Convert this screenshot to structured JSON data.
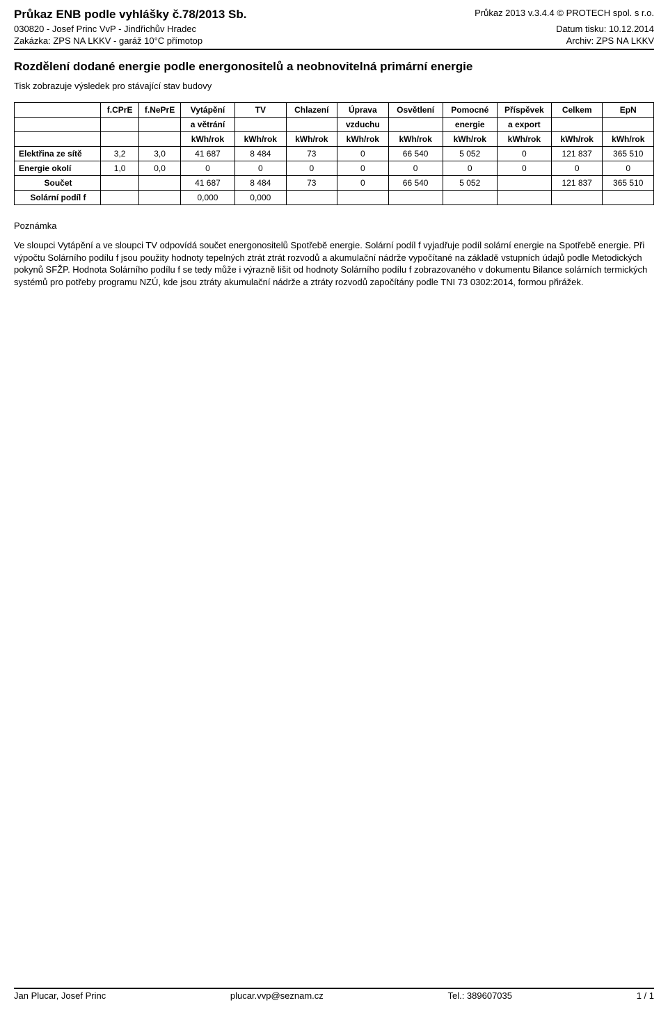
{
  "header": {
    "left1": "Průkaz ENB podle vyhlášky č.78/2013 Sb.",
    "right1": "Průkaz 2013 v.3.4.4 © PROTECH spol. s r.o.",
    "left2": "030820 - Josef Princ VvP - Jindřichův Hradec",
    "right2": "Datum tisku: 10.12.2014",
    "left3": "Zakázka: ZPS NA LKKV - garáž 10°C přímotop",
    "right3": "Archiv: ZPS NA LKKV"
  },
  "title": "Rozdělení dodané energie podle energonositelů a neobnovitelná primární energie",
  "subtitle": "Tisk zobrazuje výsledek pro stávající stav budovy",
  "table": {
    "head_row1": [
      "",
      "f.CPrE",
      "f.NePrE",
      "Vytápění",
      "TV",
      "Chlazení",
      "Úprava",
      "Osvětlení",
      "Pomocné",
      "Příspěvek",
      "Celkem",
      "EpN"
    ],
    "head_row2": [
      "",
      "",
      "",
      "a větrání",
      "",
      "",
      "vzduchu",
      "",
      "energie",
      "a export",
      "",
      ""
    ],
    "head_row3": [
      "",
      "",
      "",
      "kWh/rok",
      "kWh/rok",
      "kWh/rok",
      "kWh/rok",
      "kWh/rok",
      "kWh/rok",
      "kWh/rok",
      "kWh/rok",
      "kWh/rok"
    ],
    "rows": [
      {
        "label": "Elektřina ze sítě",
        "cells": [
          "3,2",
          "3,0",
          "41 687",
          "8 484",
          "73",
          "0",
          "66 540",
          "5 052",
          "0",
          "121 837",
          "365 510"
        ]
      },
      {
        "label": "Energie okolí",
        "cells": [
          "1,0",
          "0,0",
          "0",
          "0",
          "0",
          "0",
          "0",
          "0",
          "0",
          "0",
          "0"
        ]
      },
      {
        "label": "Součet",
        "cells": [
          "",
          "",
          "41 687",
          "8 484",
          "73",
          "0",
          "66 540",
          "5 052",
          "",
          "121 837",
          "365 510"
        ]
      },
      {
        "label": "Solární podíl f",
        "cells": [
          "",
          "",
          "0,000",
          "0,000",
          "",
          "",
          "",
          "",
          "",
          "",
          ""
        ]
      }
    ],
    "col_widths_pct": [
      13.5,
      6,
      6.5,
      8.5,
      8,
      8,
      8,
      8.5,
      8.5,
      8.5,
      8,
      8
    ]
  },
  "note": {
    "title": "Poznámka",
    "body": "Ve sloupci Vytápění a ve sloupci TV odpovídá součet energonositelů Spotřebě energie. Solární podíl f vyjadřuje podíl solární energie na Spotřebě energie. Při výpočtu Solárního podílu f jsou použity hodnoty tepelných ztrát ztrát rozvodů a akumulační nádrže vypočítané na základě vstupních údajů podle Metodických pokynů SFŽP. Hodnota Solárního podílu f se tedy může i výrazně lišit od hodnoty Solárního podílu f zobrazovaného v dokumentu Bilance solárních termických systémů pro potřeby programu NZÚ, kde jsou ztráty akumulační nádrže a ztráty rozvodů započítány podle TNI 73 0302:2014, formou přirážek."
  },
  "footer": {
    "left": "Jan Plucar, Josef Princ",
    "center": "plucar.vvp@seznam.cz",
    "right_label": "Tel.: 389607035",
    "page": "1 / 1"
  }
}
